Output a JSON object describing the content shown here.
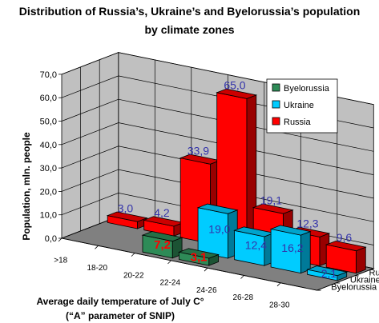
{
  "chart_data": {
    "type": "bar",
    "title": "Distribution of Russia’s, Ukraine’s and Byelorussia’s population",
    "subtitle": "by climate zones",
    "xlabel": "Average daily temperature of July C°",
    "xlabel2": "(“A” parameter of SNIP)",
    "ylabel": "Population, mln. people",
    "categories": [
      ">18",
      "18-20",
      "20-22",
      "22-24",
      "24-26",
      "26-28",
      "28-30"
    ],
    "ylim": [
      0,
      70
    ],
    "y_ticks": [
      "0,0",
      "10,0",
      "20,0",
      "30,0",
      "40,0",
      "50,0",
      "60,0",
      "70,0"
    ],
    "series": [
      {
        "name": "Byelorussia",
        "color": "#2e8b57",
        "values": [
          null,
          null,
          7.2,
          3.1,
          null,
          null,
          null
        ],
        "labels": [
          "",
          "",
          "7,2",
          "3,1",
          "",
          "",
          ""
        ]
      },
      {
        "name": "Ukraine",
        "color": "#00ccff",
        "values": [
          null,
          null,
          null,
          19.0,
          12.4,
          16.2,
          2.1
        ],
        "labels": [
          "",
          "",
          "",
          "19,0",
          "12,4",
          "16,2",
          "2,1"
        ]
      },
      {
        "name": "Russia",
        "color": "#ff0000",
        "values": [
          3.0,
          4.2,
          33.9,
          65.0,
          19.1,
          12.3,
          9.6
        ],
        "labels": [
          "3,0",
          "4,2",
          "33,9",
          "65,0",
          "19,1",
          "12,3",
          "9,6"
        ]
      }
    ],
    "legend": [
      "Byelorussia",
      "Ukraine",
      "Russia"
    ],
    "legend_position": "top-right",
    "grid": true,
    "colors": {
      "wall": "#c0c0c0",
      "floor": "#808080",
      "label_blue": "#3333aa",
      "label_red": "#ff0000"
    }
  }
}
